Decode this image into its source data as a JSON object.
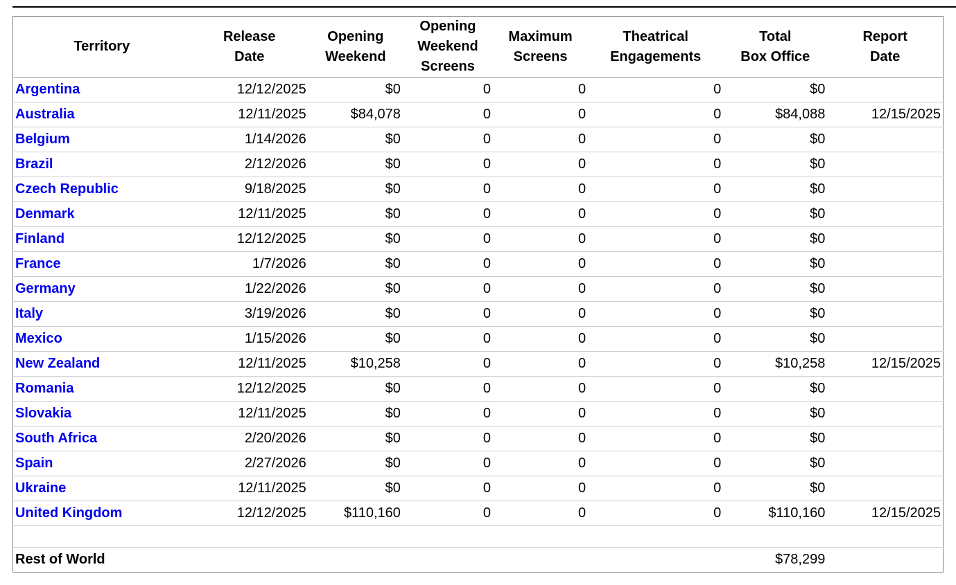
{
  "colors": {
    "link_blue": "#0000ee",
    "outer_border": "#848484",
    "header_border": "#999999",
    "row_border": "#cccccc",
    "top_rule": "#000000",
    "text": "#000000",
    "background": "#ffffff"
  },
  "table": {
    "columns": [
      {
        "key": "territory",
        "label": "Territory",
        "align": "left"
      },
      {
        "key": "release_date",
        "label": "Release\nDate",
        "align": "right"
      },
      {
        "key": "opening_weekend",
        "label": "Opening\nWeekend",
        "align": "right"
      },
      {
        "key": "opening_weekend_screens",
        "label": "Opening\nWeekend\nScreens",
        "align": "right"
      },
      {
        "key": "maximum_screens",
        "label": "Maximum\nScreens",
        "align": "right"
      },
      {
        "key": "theatrical_engagements",
        "label": "Theatrical\nEngagements",
        "align": "right"
      },
      {
        "key": "total_box_office",
        "label": "Total\nBox Office",
        "align": "right"
      },
      {
        "key": "report_date",
        "label": "Report\nDate",
        "align": "right"
      }
    ],
    "rows": [
      {
        "territory": "Argentina",
        "release_date": "12/12/2025",
        "opening_weekend": "$0",
        "opening_weekend_screens": "0",
        "maximum_screens": "0",
        "theatrical_engagements": "0",
        "total_box_office": "$0",
        "report_date": ""
      },
      {
        "territory": "Australia",
        "release_date": "12/11/2025",
        "opening_weekend": "$84,078",
        "opening_weekend_screens": "0",
        "maximum_screens": "0",
        "theatrical_engagements": "0",
        "total_box_office": "$84,088",
        "report_date": "12/15/2025"
      },
      {
        "territory": "Belgium",
        "release_date": "1/14/2026",
        "opening_weekend": "$0",
        "opening_weekend_screens": "0",
        "maximum_screens": "0",
        "theatrical_engagements": "0",
        "total_box_office": "$0",
        "report_date": ""
      },
      {
        "territory": "Brazil",
        "release_date": "2/12/2026",
        "opening_weekend": "$0",
        "opening_weekend_screens": "0",
        "maximum_screens": "0",
        "theatrical_engagements": "0",
        "total_box_office": "$0",
        "report_date": ""
      },
      {
        "territory": "Czech Republic",
        "release_date": "9/18/2025",
        "opening_weekend": "$0",
        "opening_weekend_screens": "0",
        "maximum_screens": "0",
        "theatrical_engagements": "0",
        "total_box_office": "$0",
        "report_date": ""
      },
      {
        "territory": "Denmark",
        "release_date": "12/11/2025",
        "opening_weekend": "$0",
        "opening_weekend_screens": "0",
        "maximum_screens": "0",
        "theatrical_engagements": "0",
        "total_box_office": "$0",
        "report_date": ""
      },
      {
        "territory": "Finland",
        "release_date": "12/12/2025",
        "opening_weekend": "$0",
        "opening_weekend_screens": "0",
        "maximum_screens": "0",
        "theatrical_engagements": "0",
        "total_box_office": "$0",
        "report_date": ""
      },
      {
        "territory": "France",
        "release_date": "1/7/2026",
        "opening_weekend": "$0",
        "opening_weekend_screens": "0",
        "maximum_screens": "0",
        "theatrical_engagements": "0",
        "total_box_office": "$0",
        "report_date": ""
      },
      {
        "territory": "Germany",
        "release_date": "1/22/2026",
        "opening_weekend": "$0",
        "opening_weekend_screens": "0",
        "maximum_screens": "0",
        "theatrical_engagements": "0",
        "total_box_office": "$0",
        "report_date": ""
      },
      {
        "territory": "Italy",
        "release_date": "3/19/2026",
        "opening_weekend": "$0",
        "opening_weekend_screens": "0",
        "maximum_screens": "0",
        "theatrical_engagements": "0",
        "total_box_office": "$0",
        "report_date": ""
      },
      {
        "territory": "Mexico",
        "release_date": "1/15/2026",
        "opening_weekend": "$0",
        "opening_weekend_screens": "0",
        "maximum_screens": "0",
        "theatrical_engagements": "0",
        "total_box_office": "$0",
        "report_date": ""
      },
      {
        "territory": "New Zealand",
        "release_date": "12/11/2025",
        "opening_weekend": "$10,258",
        "opening_weekend_screens": "0",
        "maximum_screens": "0",
        "theatrical_engagements": "0",
        "total_box_office": "$10,258",
        "report_date": "12/15/2025"
      },
      {
        "territory": "Romania",
        "release_date": "12/12/2025",
        "opening_weekend": "$0",
        "opening_weekend_screens": "0",
        "maximum_screens": "0",
        "theatrical_engagements": "0",
        "total_box_office": "$0",
        "report_date": ""
      },
      {
        "territory": "Slovakia",
        "release_date": "12/11/2025",
        "opening_weekend": "$0",
        "opening_weekend_screens": "0",
        "maximum_screens": "0",
        "theatrical_engagements": "0",
        "total_box_office": "$0",
        "report_date": ""
      },
      {
        "territory": "South Africa",
        "release_date": "2/20/2026",
        "opening_weekend": "$0",
        "opening_weekend_screens": "0",
        "maximum_screens": "0",
        "theatrical_engagements": "0",
        "total_box_office": "$0",
        "report_date": ""
      },
      {
        "territory": "Spain",
        "release_date": "2/27/2026",
        "opening_weekend": "$0",
        "opening_weekend_screens": "0",
        "maximum_screens": "0",
        "theatrical_engagements": "0",
        "total_box_office": "$0",
        "report_date": ""
      },
      {
        "territory": "Ukraine",
        "release_date": "12/11/2025",
        "opening_weekend": "$0",
        "opening_weekend_screens": "0",
        "maximum_screens": "0",
        "theatrical_engagements": "0",
        "total_box_office": "$0",
        "report_date": ""
      },
      {
        "territory": "United Kingdom",
        "release_date": "12/12/2025",
        "opening_weekend": "$110,160",
        "opening_weekend_screens": "0",
        "maximum_screens": "0",
        "theatrical_engagements": "0",
        "total_box_office": "$110,160",
        "report_date": "12/15/2025"
      }
    ],
    "summary_row": {
      "territory": "Rest of World",
      "release_date": "",
      "opening_weekend": "",
      "opening_weekend_screens": "",
      "maximum_screens": "",
      "theatrical_engagements": "",
      "total_box_office": "$78,299",
      "report_date": ""
    }
  }
}
